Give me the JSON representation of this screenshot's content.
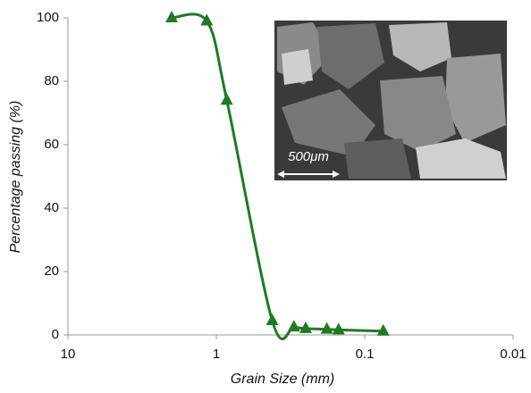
{
  "chart_data": {
    "type": "line",
    "x_label": "Grain Size (mm)",
    "y_label": "Percentage passing (%)",
    "x": [
      2,
      1.16,
      0.85,
      0.42,
      0.3,
      0.25,
      0.18,
      0.15,
      0.075
    ],
    "series": [
      {
        "color": "#1f7a23",
        "values": [
          100,
          99,
          74,
          4.5,
          2.5,
          2,
          1.8,
          1.6,
          1.2
        ]
      }
    ],
    "x_scale": "log",
    "xlim": [
      10,
      0.01
    ],
    "xticks": [
      10,
      1,
      0.1,
      0.01
    ],
    "ylim": [
      0,
      100
    ],
    "yticks": [
      0,
      20,
      40,
      60,
      80,
      100
    ],
    "annotation": "500μm"
  }
}
